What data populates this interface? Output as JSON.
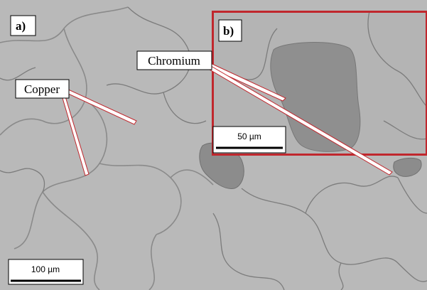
{
  "panels": [
    {
      "label": "a)"
    },
    {
      "label": "b)"
    }
  ],
  "annotations": [
    {
      "label": "Chromium"
    },
    {
      "label": "Copper"
    }
  ],
  "scale_bars": [
    {
      "label": "50 µm"
    },
    {
      "label": "100 µm"
    }
  ]
}
